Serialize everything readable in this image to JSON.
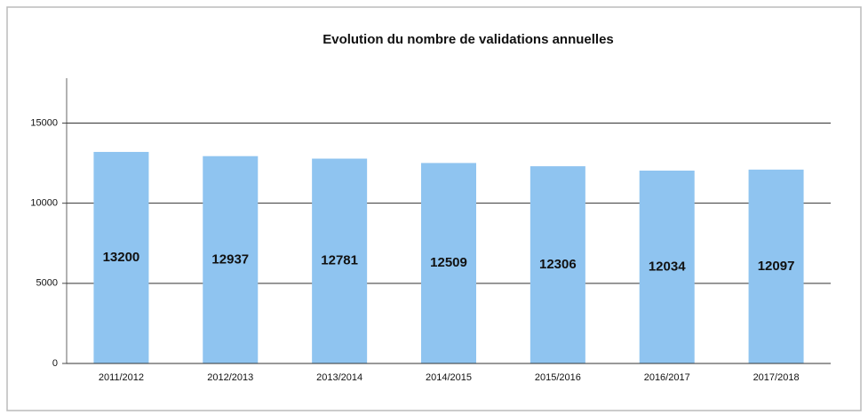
{
  "chart_data": {
    "type": "bar",
    "title": "Evolution du nombre de validations annuelles",
    "categories": [
      "2011/2012",
      "2012/2013",
      "2013/2014",
      "2014/2015",
      "2015/2016",
      "2016/2017",
      "2017/2018"
    ],
    "values": [
      13200,
      12937,
      12781,
      12509,
      12306,
      12034,
      12097
    ],
    "color": "#8fc4f0",
    "ylim": [
      0,
      17800
    ],
    "yticks": [
      0,
      5000,
      10000,
      15000
    ],
    "grid": true
  }
}
